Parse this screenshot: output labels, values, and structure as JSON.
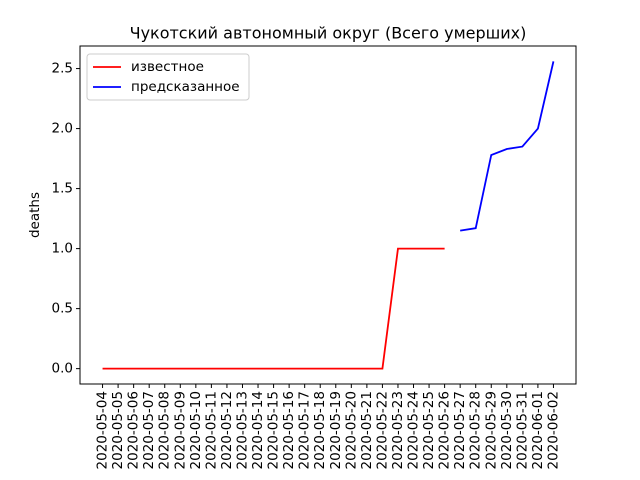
{
  "chart_data": {
    "type": "line",
    "title": "Чукотский автономный округ (Всего умерших)",
    "ylabel": "deaths",
    "categories": [
      "2020-05-04",
      "2020-05-05",
      "2020-05-06",
      "2020-05-07",
      "2020-05-08",
      "2020-05-09",
      "2020-05-10",
      "2020-05-11",
      "2020-05-12",
      "2020-05-13",
      "2020-05-14",
      "2020-05-15",
      "2020-05-16",
      "2020-05-17",
      "2020-05-18",
      "2020-05-19",
      "2020-05-20",
      "2020-05-21",
      "2020-05-22",
      "2020-05-23",
      "2020-05-24",
      "2020-05-25",
      "2020-05-26",
      "2020-05-27",
      "2020-05-28",
      "2020-05-29",
      "2020-05-30",
      "2020-05-31",
      "2020-06-01",
      "2020-06-02"
    ],
    "series": [
      {
        "name": "известное",
        "color": "#ff0000",
        "values": [
          0,
          0,
          0,
          0,
          0,
          0,
          0,
          0,
          0,
          0,
          0,
          0,
          0,
          0,
          0,
          0,
          0,
          0,
          0,
          1,
          1,
          1,
          1,
          null,
          null,
          null,
          null,
          null,
          null,
          null
        ]
      },
      {
        "name": "предсказанное",
        "color": "#0000ff",
        "values": [
          null,
          null,
          null,
          null,
          null,
          null,
          null,
          null,
          null,
          null,
          null,
          null,
          null,
          null,
          null,
          null,
          null,
          null,
          null,
          null,
          null,
          null,
          null,
          1.15,
          1.17,
          1.78,
          1.83,
          1.85,
          2.0,
          2.56
        ]
      }
    ],
    "ylim": [
      -0.128,
      2.688
    ],
    "yticks": [
      {
        "value": 0,
        "label": "0.0"
      },
      0.5,
      {
        "value": 1,
        "label": "1.0"
      },
      1.5,
      {
        "value": 2,
        "label": "2.0"
      },
      2.5
    ],
    "legend": "upper left"
  }
}
